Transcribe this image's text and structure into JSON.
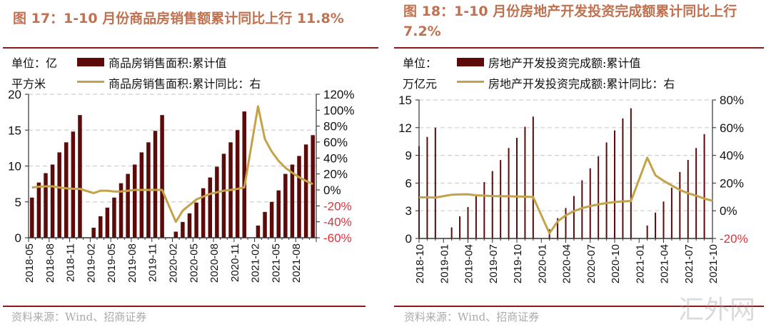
{
  "watermark": "汇外网",
  "colors": {
    "bar": "#5c0a0a",
    "line": "#c4a24a",
    "title": "#c0714f",
    "rule": "#8b1a1a",
    "negative": "#e0303a"
  },
  "chart_data": [
    {
      "type": "bar+line",
      "title": "图 17：1-10 月份商品房销售额累计同比上行 11.8%",
      "unit_label": [
        "单位：亿",
        "平方米"
      ],
      "legend": [
        "商品房销售面积:累计值",
        "商品房销售面积:累计同比：右"
      ],
      "source": "资料来源：Wind、招商证券",
      "x": [
        "2018-05",
        "2018-06",
        "2018-07",
        "2018-08",
        "2018-09",
        "2018-10",
        "2018-11",
        "2018-12",
        "2019-01",
        "2019-02",
        "2019-03",
        "2019-04",
        "2019-05",
        "2019-06",
        "2019-07",
        "2019-08",
        "2019-09",
        "2019-10",
        "2019-11",
        "2019-12",
        "2020-01",
        "2020-02",
        "2020-03",
        "2020-04",
        "2020-05",
        "2020-06",
        "2020-07",
        "2020-08",
        "2020-09",
        "2020-10",
        "2020-11",
        "2020-12",
        "2021-01",
        "2021-02",
        "2021-03",
        "2021-04",
        "2021-05",
        "2021-06",
        "2021-07",
        "2021-08",
        "2021-09",
        "2021-10"
      ],
      "x_tick_labels": [
        "2018-05",
        "2018-08",
        "2018-11",
        "2019-02",
        "2019-05",
        "2019-08",
        "2019-11",
        "2020-02",
        "2020-05",
        "2020-08",
        "2020-11",
        "2021-02",
        "2021-05",
        "2021-08"
      ],
      "series": [
        {
          "name": "商品房销售面积:累计值",
          "axis": "left",
          "type": "bar",
          "values": [
            5.6,
            7.7,
            9.0,
            10.2,
            11.9,
            13.3,
            14.8,
            17.1,
            null,
            1.4,
            3.0,
            4.2,
            5.6,
            7.6,
            8.9,
            10.2,
            11.9,
            13.3,
            14.9,
            17.1,
            null,
            0.85,
            2.2,
            3.4,
            4.9,
            6.9,
            8.4,
            9.9,
            11.7,
            13.3,
            15.0,
            17.6,
            null,
            1.7,
            3.6,
            5.0,
            6.6,
            8.9,
            10.2,
            11.4,
            13.0,
            14.3
          ]
        },
        {
          "name": "商品房销售面积:累计同比",
          "axis": "right",
          "type": "line",
          "values": [
            3,
            4,
            4.5,
            4.5,
            3,
            2,
            1.5,
            1.3,
            null,
            -4,
            -1,
            -1,
            -2,
            -2,
            -1,
            0,
            0,
            0,
            0,
            0,
            null,
            -40,
            -26,
            -19,
            -12,
            -8.4,
            -5,
            -3,
            -1,
            0,
            1.3,
            3.2,
            null,
            104.9,
            63.8,
            48.1,
            36.4,
            27.7,
            21.5,
            15.9,
            11.3,
            7.3
          ]
        }
      ],
      "ylim_left": [
        0,
        20
      ],
      "yticks_left": [
        "0",
        "5",
        "10",
        "15",
        "20"
      ],
      "ylim_right": [
        -60,
        120
      ],
      "yticks_right": [
        "-60%",
        "-40%",
        "-20%",
        "0%",
        "20%",
        "40%",
        "60%",
        "80%",
        "100%",
        "120%"
      ],
      "grid": true
    },
    {
      "type": "bar+line",
      "title": "图 18：1-10 月份房地产开发投资完成额累计同比上行 7.2%",
      "unit_label": [
        "单位：",
        "万亿元"
      ],
      "legend": [
        "房地产开发投资完成额:累计值",
        "房地产开发投资完成额:累计同比：右"
      ],
      "source": "资料来源：Wind、招商证券",
      "x": [
        "2018-10",
        "2018-11",
        "2018-12",
        "2019-01",
        "2019-02",
        "2019-03",
        "2019-04",
        "2019-05",
        "2019-06",
        "2019-07",
        "2019-08",
        "2019-09",
        "2019-10",
        "2019-11",
        "2019-12",
        "2020-01",
        "2020-02",
        "2020-03",
        "2020-04",
        "2020-05",
        "2020-06",
        "2020-07",
        "2020-08",
        "2020-09",
        "2020-10",
        "2020-11",
        "2020-12",
        "2021-01",
        "2021-02",
        "2021-03",
        "2021-04",
        "2021-05",
        "2021-06",
        "2021-07",
        "2021-08",
        "2021-09",
        "2021-10"
      ],
      "x_tick_labels": [
        "2018-10",
        "2019-01",
        "2019-04",
        "2019-07",
        "2019-10",
        "2020-01",
        "2020-04",
        "2020-07",
        "2020-10",
        "2021-01",
        "2021-04",
        "2021-07",
        "2021-10"
      ],
      "series": [
        {
          "name": "房地产开发投资完成额:累计值",
          "axis": "left",
          "type": "bar",
          "values": [
            10.0,
            11.0,
            12.0,
            null,
            1.2,
            2.4,
            3.4,
            4.6,
            6.1,
            7.3,
            8.5,
            9.8,
            10.9,
            12.1,
            13.2,
            null,
            1.0,
            2.2,
            3.3,
            4.6,
            6.3,
            7.6,
            8.9,
            10.4,
            11.7,
            13.0,
            14.1,
            null,
            1.4,
            2.8,
            4.0,
            5.5,
            7.2,
            8.5,
            9.8,
            11.3,
            null
          ]
        },
        {
          "name": "房地产开发投资完成额:累计同比",
          "axis": "right",
          "type": "line",
          "values": [
            9.7,
            9.7,
            9.5,
            null,
            11.6,
            11.8,
            11.9,
            11.2,
            10.9,
            10.6,
            10.5,
            10.5,
            10.3,
            10.2,
            9.9,
            null,
            -16.3,
            -7.7,
            -3.3,
            -0.3,
            1.9,
            3.4,
            4.6,
            5.6,
            6.3,
            6.8,
            7.0,
            null,
            38.3,
            25.6,
            21.6,
            18.3,
            15.0,
            12.7,
            10.9,
            8.8,
            7.2
          ]
        }
      ],
      "ylim_left": [
        0,
        15
      ],
      "yticks_left": [
        "0",
        "3",
        "6",
        "9",
        "12",
        "15"
      ],
      "ylim_right": [
        -20,
        80
      ],
      "yticks_right": [
        "-20%",
        "0%",
        "20%",
        "40%",
        "60%",
        "80%"
      ],
      "grid": true
    }
  ]
}
